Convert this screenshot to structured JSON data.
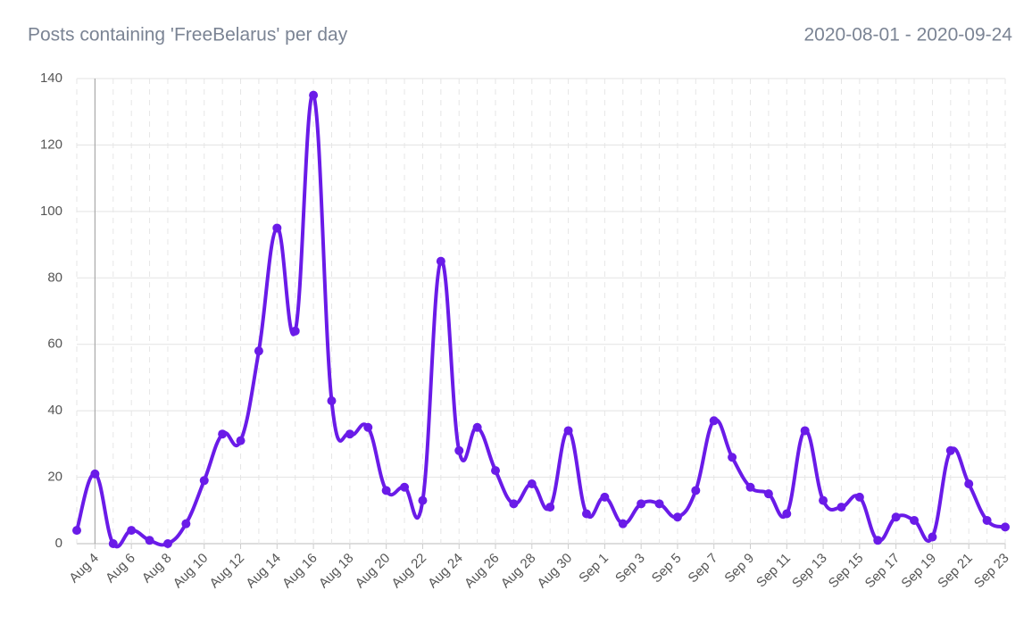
{
  "chart_data": {
    "type": "line",
    "title": "Posts containing 'FreeBelarus' per day",
    "subtitle": "2020-08-01 - 2020-09-24",
    "categories": [
      null,
      "Aug 4",
      null,
      "Aug 6",
      null,
      "Aug 8",
      null,
      "Aug 10",
      null,
      "Aug 12",
      null,
      "Aug 14",
      null,
      "Aug 16",
      null,
      "Aug 18",
      null,
      "Aug 20",
      null,
      "Aug 22",
      null,
      "Aug 24",
      null,
      "Aug 26",
      null,
      "Aug 28",
      null,
      "Aug 30",
      null,
      "Sep 1",
      null,
      "Sep 3",
      null,
      "Sep 5",
      null,
      "Sep 7",
      null,
      "Sep 9",
      null,
      "Sep 11",
      null,
      "Sep 13",
      null,
      "Sep 15",
      null,
      "Sep 17",
      null,
      "Sep 19",
      null,
      "Sep 21",
      null,
      "Sep 23"
    ],
    "series": [
      {
        "color": "#6a1be8",
        "values": [
          4,
          21,
          0,
          4,
          1,
          0,
          6,
          19,
          33,
          31,
          58,
          95,
          64,
          135,
          43,
          33,
          35,
          16,
          17,
          13,
          85,
          28,
          35,
          22,
          12,
          18,
          11,
          34,
          9,
          14,
          6,
          12,
          12,
          8,
          16,
          37,
          26,
          17,
          15,
          9,
          34,
          13,
          11,
          14,
          1,
          8,
          7,
          2,
          28,
          18,
          7,
          5
        ]
      }
    ],
    "ylim": [
      0,
      140
    ],
    "yticks": [
      0,
      20,
      40,
      60,
      80,
      100,
      120,
      140
    ],
    "grid": true
  }
}
